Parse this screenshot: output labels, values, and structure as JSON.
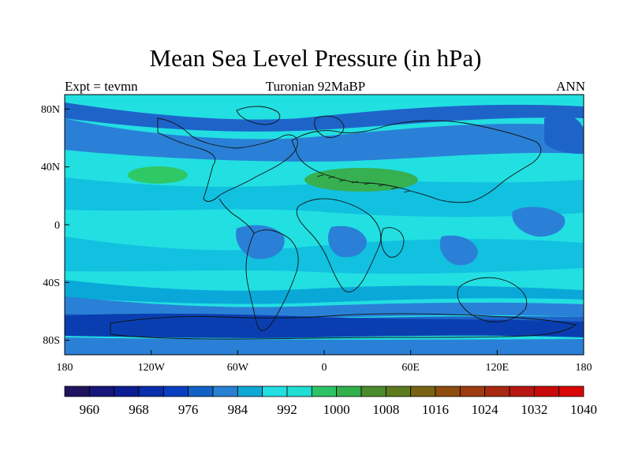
{
  "title": "Mean Sea Level Pressure (in hPa)",
  "experiment_label": "Expt = tevmn",
  "center_label": "Turonian  92MaBP",
  "season_label": "ANN",
  "map": {
    "lon_ticks": [
      "180",
      "120W",
      "60W",
      "0",
      "60E",
      "120E",
      "180"
    ],
    "lat_ticks": [
      "80N",
      "40N",
      "0",
      "40S",
      "80S"
    ],
    "field_colors": {
      "low_980": "#0a3eb0",
      "band_984": "#1e64c8",
      "band_988": "#2a80d6",
      "band_992": "#0aa8d8",
      "band_996": "#12c0e0",
      "band_1000": "#22dfe2",
      "band_1004": "#2ec864",
      "high_1008": "#36b050"
    }
  },
  "colorbar": {
    "colors": [
      "#20145e",
      "#16157a",
      "#0c1d92",
      "#0a2eac",
      "#0a3fc0",
      "#1262c6",
      "#2780d0",
      "#10a8d6",
      "#23dfe2",
      "#21ddd2",
      "#2ec268",
      "#32b04c",
      "#4c8a2e",
      "#5e7a1e",
      "#786414",
      "#8e4c10",
      "#9c3c10",
      "#a82812",
      "#b81612",
      "#c80a0a",
      "#d80606"
    ],
    "labels": [
      "960",
      "968",
      "976",
      "984",
      "992",
      "1000",
      "1008",
      "1016",
      "1024",
      "1032",
      "1040"
    ]
  }
}
